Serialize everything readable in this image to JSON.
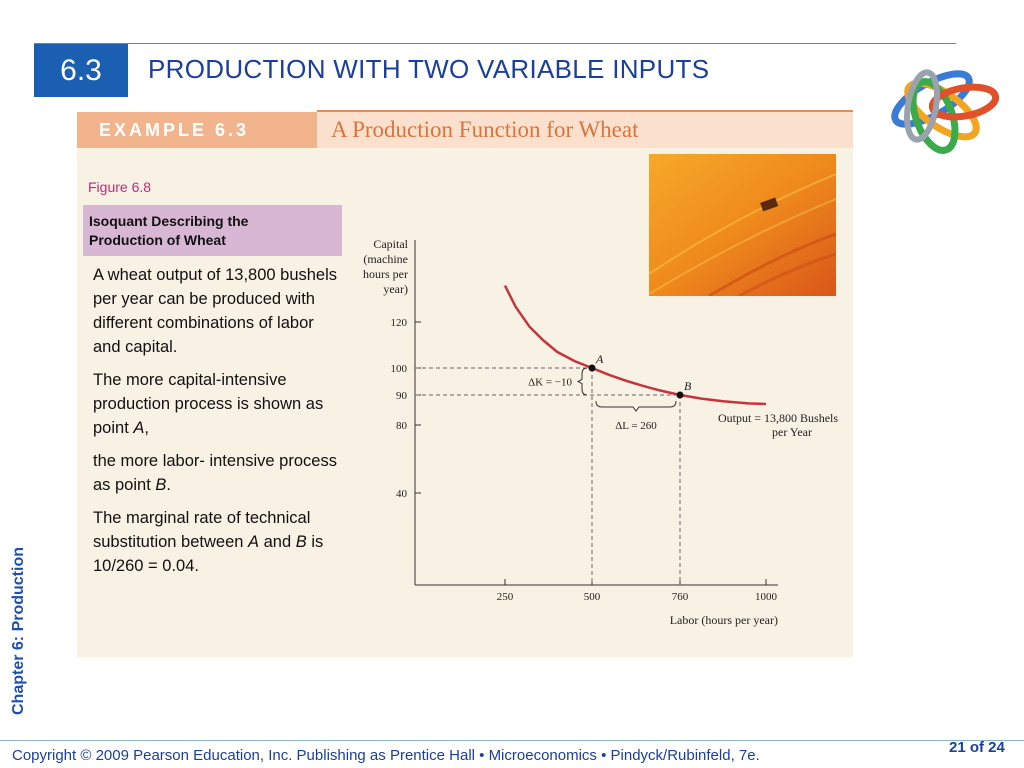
{
  "header": {
    "section_number": "6.3",
    "title": "PRODUCTION WITH TWO VARIABLE INPUTS"
  },
  "example": {
    "label": "EXAMPLE 6.3",
    "title": "A Production Function for Wheat"
  },
  "figure": {
    "label": "Figure 6.8",
    "caption": [
      "Isoquant Describing the",
      "Production of Wheat"
    ]
  },
  "body": {
    "p1": "A wheat output of 13,800 bushels per year can be produced with different combinations of labor and capital.",
    "p2_a": "The more capital-intensive production process is shown as point ",
    "p2_b": "A",
    "p2_c": ",",
    "p3_a": "the more labor- intensive process as point ",
    "p3_b": "B",
    "p3_c": ".",
    "p4_a": "The marginal rate of technical substitution between ",
    "p4_b": "A",
    "p4_c": " and ",
    "p4_d": "B",
    "p4_e": " is 10/260 = 0.04."
  },
  "sidebar": {
    "chapter_label": "Chapter 6:  Production"
  },
  "footer": {
    "copyright": "Copyright © 2009 Pearson Education, Inc. Publishing as Prentice Hall  •  Microeconomics  •  Pindyck/Rubinfeld, 7e.",
    "page": "21 of 24"
  },
  "colors": {
    "accent": "#1b5fb3",
    "curve": "#c8343c",
    "panel": "#f8f2e4"
  },
  "chart_data": {
    "type": "line",
    "ylabel": [
      "Capital",
      "(machine",
      "hours per",
      "year)"
    ],
    "xlabel": "Labor (hours per year)",
    "xlim": [
      0,
      1050
    ],
    "ylim": [
      0,
      140
    ],
    "x_ticks": [
      250,
      500,
      760,
      1000
    ],
    "y_ticks": [
      40,
      80,
      90,
      100,
      120
    ],
    "series": [
      {
        "name": "Output = 13,800 Bushels per Year",
        "x": [
          250,
          280,
          320,
          360,
          400,
          450,
          500,
          550,
          600,
          650,
          700,
          760,
          820,
          880,
          950,
          1000
        ],
        "y": [
          134,
          126,
          118,
          112,
          107,
          103,
          100,
          97.5,
          95.3,
          93.4,
          91.7,
          90,
          88.8,
          87.9,
          87.2,
          87
        ]
      }
    ],
    "points": [
      {
        "label": "A",
        "x": 500,
        "y": 100
      },
      {
        "label": "B",
        "x": 760,
        "y": 90
      }
    ],
    "annotations": {
      "delta_k": "ΔK = −10",
      "delta_l": "ΔL = 260",
      "output_line1": "Output = 13,800 Bushels",
      "output_line2": "per Year"
    }
  }
}
